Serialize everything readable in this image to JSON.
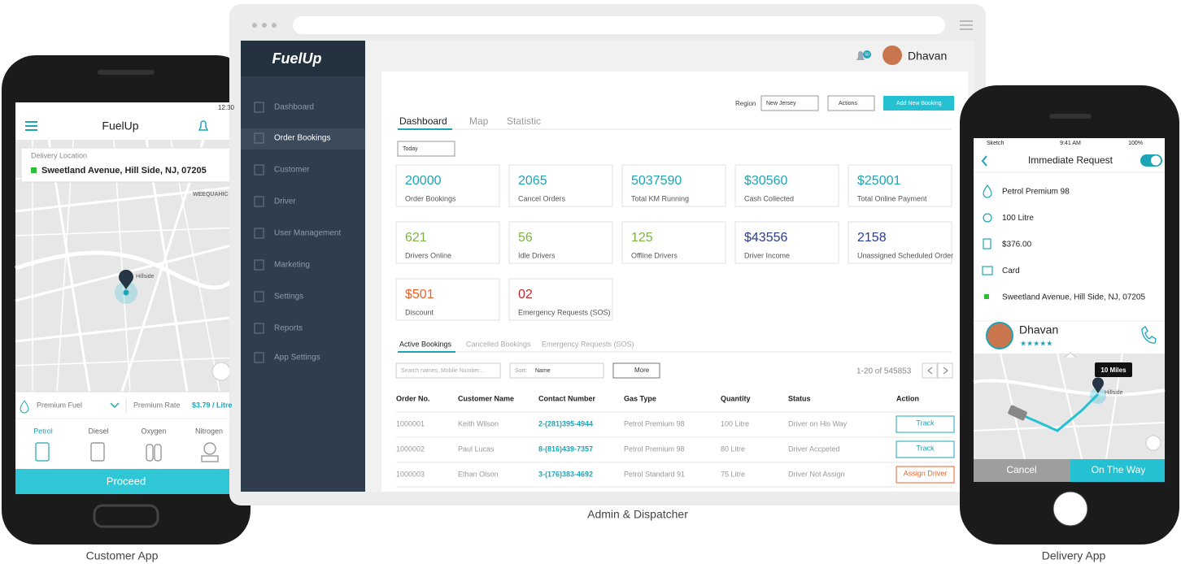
{
  "captions": {
    "customer": "Customer App",
    "admin": "Admin & Dispatcher",
    "delivery": "Delivery App"
  },
  "customer_app": {
    "time": "12:30",
    "title": "FuelUp",
    "location_label": "Delivery Location",
    "address": "Sweetland Avenue, Hill Side, NJ, 07205",
    "map_labels": [
      "WEEQUAHIC",
      "Hillside"
    ],
    "fuel": "Premium Fuel",
    "rate_label": "Premium Rate",
    "rate": "$3.79 / Litre",
    "fuel_types": [
      "Petrol",
      "Diesel",
      "Oxygen",
      "Nitrogen"
    ],
    "button": "Proceed"
  },
  "admin": {
    "logo": "FuelUp",
    "notifications": "50",
    "user": "Dhavan",
    "nav": [
      "Dashboard",
      "Order Bookings",
      "Customer",
      "Driver",
      "User Management",
      "Marketing",
      "Settings",
      "Reports",
      "App Settings"
    ],
    "region_label": "Region",
    "region": "New Jersey",
    "actions": "Actions",
    "add_button": "Add New Booking",
    "tabs": [
      "Dashboard",
      "Map",
      "Statistic"
    ],
    "period": "Today",
    "stats": [
      {
        "value": "20000",
        "label": "Order Bookings",
        "color": "#1ea5b5"
      },
      {
        "value": "2065",
        "label": "Cancel Orders",
        "color": "#1ea5b5"
      },
      {
        "value": "5037590",
        "label": "Total KM Running",
        "color": "#1ea5b5"
      },
      {
        "value": "$30560",
        "label": "Cash Collected",
        "color": "#1ea5b5"
      },
      {
        "value": "$25001",
        "label": "Total Online Payment",
        "color": "#1ea5b5"
      },
      {
        "value": "621",
        "label": "Drivers Online",
        "color": "#7cb342"
      },
      {
        "value": "56",
        "label": "Idle Drivers",
        "color": "#7cb342"
      },
      {
        "value": "125",
        "label": "Offline Drivers",
        "color": "#7cb342"
      },
      {
        "value": "$43556",
        "label": "Driver Income",
        "color": "#2b3d8f"
      },
      {
        "value": "2158",
        "label": "Unassigned Scheduled Order",
        "color": "#2b3d8f"
      },
      {
        "value": "$501",
        "label": "Discount",
        "color": "#f0622a"
      },
      {
        "value": "02",
        "label": "Emergency Requests (SOS)",
        "color": "#c0272d"
      }
    ],
    "booking_tabs": [
      "Active Bookings",
      "Cancelled Bookings",
      "Emergency Requests (SOS)"
    ],
    "search": "Search names, Mobile Number...",
    "sort_label": "Sort:",
    "sort": "Name",
    "more": "More",
    "pagination": "1-20 of 545853",
    "columns": [
      "Order No.",
      "Customer Name",
      "Contact Number",
      "Gas Type",
      "Quantity",
      "Status",
      "Action"
    ],
    "rows": [
      [
        "1000001",
        "Keith Wilson",
        "2-(281)395-4944",
        "Petrol Premium 98",
        "100 Litre",
        "Driver on His Way",
        "Track"
      ],
      [
        "1000002",
        "Paul Lucas",
        "8-(816)439-7357",
        "Petrol Premium 98",
        "80 Litre",
        "Driver Accpeted",
        "Track"
      ],
      [
        "1000003",
        "Ethan Olson",
        "3-(176)383-4692",
        "Petrol Standard 91",
        "75 Litre",
        "Driver Not Assign",
        "Assign Driver"
      ]
    ]
  },
  "delivery_app": {
    "carrier": "Sketch",
    "time": "9:41 AM",
    "battery": "100%",
    "title": "Immediate Request",
    "details": [
      "Petrol Premium 98",
      "100 Litre",
      "$376.00",
      "Card",
      "Sweetland Avenue, Hill Side, NJ, 07205"
    ],
    "driver": "Dhavan",
    "distance": "10 Miles",
    "map_label": "Hillside",
    "cancel": "Cancel",
    "accept": "On The Way"
  }
}
